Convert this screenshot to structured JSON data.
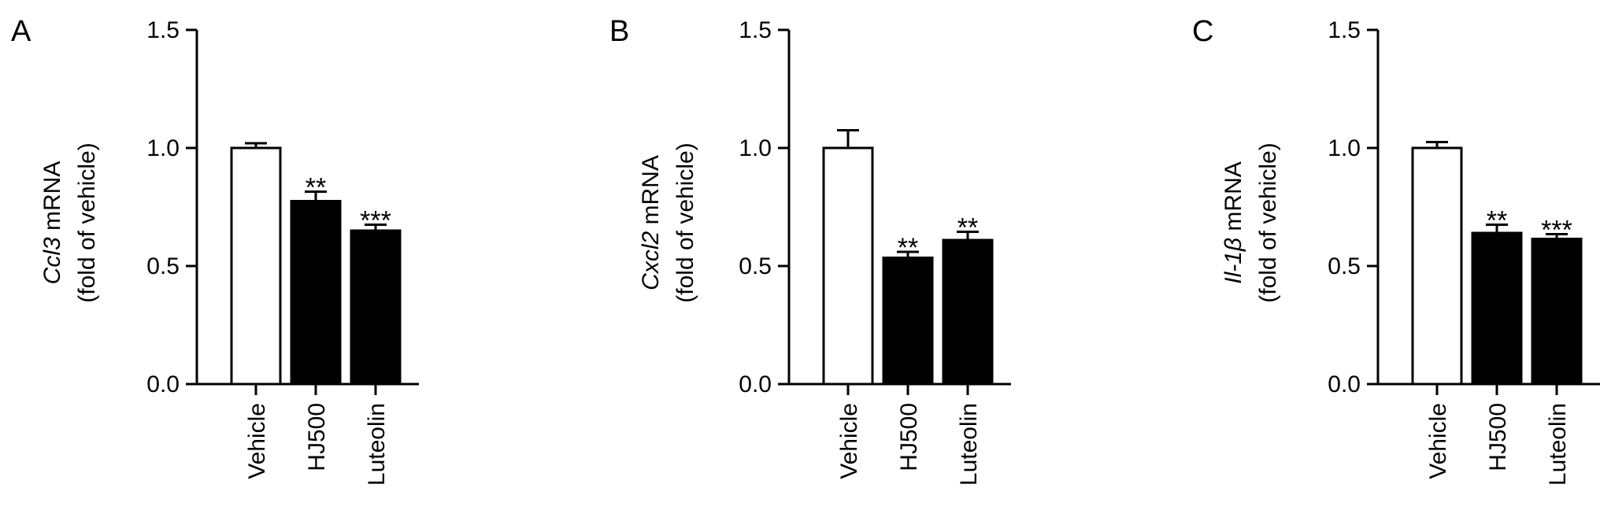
{
  "colors": {
    "axis": "#000000",
    "bar_outline": "#000000",
    "vehicle_fill": "#ffffff",
    "treated_fill": "#000000"
  },
  "chart_data": [
    {
      "type": "bar",
      "panel_label": "A",
      "categories": [
        "Vehicle",
        "HJ500",
        "Luteolin"
      ],
      "values": [
        1.0,
        0.775,
        0.65
      ],
      "errors": [
        0.02,
        0.04,
        0.025
      ],
      "significance": [
        "",
        "**",
        "***"
      ],
      "fills": [
        "#ffffff",
        "#000000",
        "#000000"
      ],
      "ylabel_gene": "Ccl3",
      "ylabel_rest": " mRNA",
      "ylabel_line2": "(fold of vehicle)",
      "ylim": [
        0,
        1.5
      ],
      "yticks": [
        "0.0",
        "0.5",
        "1.0",
        "1.5"
      ]
    },
    {
      "type": "bar",
      "panel_label": "B",
      "categories": [
        "Vehicle",
        "HJ500",
        "Luteolin"
      ],
      "values": [
        1.0,
        0.535,
        0.61
      ],
      "errors": [
        0.075,
        0.025,
        0.035
      ],
      "significance": [
        "",
        "**",
        "**"
      ],
      "fills": [
        "#ffffff",
        "#000000",
        "#000000"
      ],
      "ylabel_gene": "Cxcl2",
      "ylabel_rest": " mRNA",
      "ylabel_line2": "(fold of vehicle)",
      "ylim": [
        0,
        1.5
      ],
      "yticks": [
        "0.0",
        "0.5",
        "1.0",
        "1.5"
      ]
    },
    {
      "type": "bar",
      "panel_label": "C",
      "categories": [
        "Vehicle",
        "HJ500",
        "Luteolin"
      ],
      "values": [
        1.0,
        0.64,
        0.615
      ],
      "errors": [
        0.025,
        0.035,
        0.02
      ],
      "significance": [
        "",
        "**",
        "***"
      ],
      "fills": [
        "#ffffff",
        "#000000",
        "#000000"
      ],
      "ylabel_gene": "Il-1β",
      "ylabel_rest": " mRNA",
      "ylabel_line2": "(fold of vehicle)",
      "ylim": [
        0,
        1.5
      ],
      "yticks": [
        "0.0",
        "0.5",
        "1.0",
        "1.5"
      ]
    }
  ]
}
